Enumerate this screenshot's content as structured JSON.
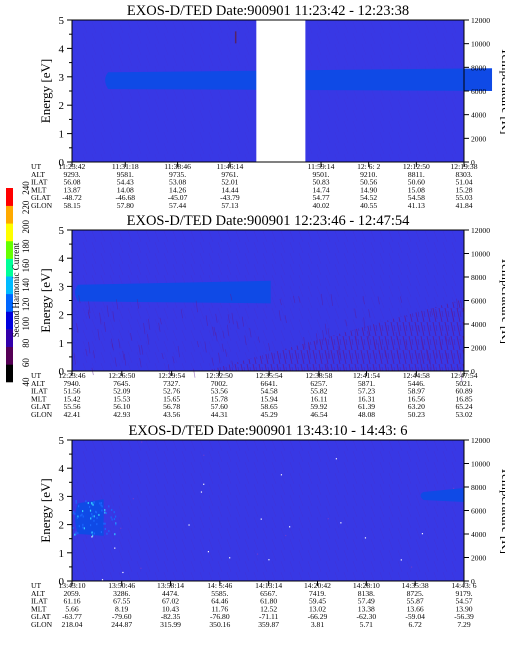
{
  "colorbar": {
    "label": "Second Harmonic Current",
    "ticks": [
      "40",
      "60",
      "80",
      "100",
      "120",
      "140",
      "160",
      "180",
      "200",
      "220",
      "240"
    ],
    "colors": [
      "#000000",
      "#550055",
      "#3300aa",
      "#0000dd",
      "#0066ff",
      "#00bbff",
      "#00ff99",
      "#66ff00",
      "#ffff00",
      "#ffaa00",
      "#ff0000"
    ]
  },
  "colors": {
    "background_low": "#3838e6",
    "band_high": "#0f4ae6",
    "noise_dark": "#5a1c9a",
    "gap": "#ffffff"
  },
  "panels": [
    {
      "title": "EXOS-D/TED   Date:900901   11:23:42 - 12:23:38",
      "ylabel": "Energy [eV]",
      "y2label": "Temperature [K]",
      "yticks": [
        "0",
        "1",
        "2",
        "3",
        "4",
        "5"
      ],
      "y2ticks": [
        "0",
        "2000",
        "4000",
        "6000",
        "8000",
        "10000",
        "12000"
      ],
      "row_labels": [
        "UT",
        "ALT",
        "ILAT",
        "MLT",
        "GLAT",
        "GLON"
      ],
      "columns": [
        [
          "11:23:42",
          "9293.",
          "56.08",
          "13.87",
          "-48.72",
          "58.15"
        ],
        [
          "11:31:18",
          "9581.",
          "54.43",
          "14.08",
          "-46.68",
          "57.80"
        ],
        [
          "11:38:46",
          "9735.",
          "53.08",
          "14.26",
          "-45.07",
          "57.44"
        ],
        [
          "11:46:14",
          "9761.",
          "52.01",
          "14.44",
          "-43.79",
          "57.13"
        ],
        [
          "11:59:14",
          "9501.",
          "50.83",
          "14.74",
          "54.77",
          "40.02"
        ],
        [
          "12: 6: 2",
          "9210.",
          "50.56",
          "14.90",
          "54.52",
          "40.55"
        ],
        [
          "12:12:50",
          "8811.",
          "50.60",
          "15.08",
          "54.58",
          "41.13"
        ],
        [
          "12:19:38",
          "8303.",
          "51.04",
          "15.28",
          "55.03",
          "41.84"
        ]
      ]
    },
    {
      "title": "EXOS-D/TED   Date:900901   12:23:46 - 12:47:54",
      "ylabel": "Energy [eV]",
      "y2label": "Temperature [K]",
      "yticks": [
        "0",
        "1",
        "2",
        "3",
        "4",
        "5"
      ],
      "y2ticks": [
        "0",
        "2000",
        "4000",
        "6000",
        "8000",
        "10000",
        "12000"
      ],
      "row_labels": [
        "UT",
        "ALT",
        "ILAT",
        "MLT",
        "GLAT",
        "GLON"
      ],
      "columns": [
        [
          "12:23:46",
          "7940.",
          "51.56",
          "15.42",
          "55.56",
          "42.41"
        ],
        [
          "12:26:50",
          "7645.",
          "52.09",
          "15.53",
          "56.10",
          "42.93"
        ],
        [
          "12:29:54",
          "7327.",
          "52.76",
          "15.65",
          "56.78",
          "43.56"
        ],
        [
          "12:32:50",
          "7002.",
          "53.56",
          "15.78",
          "57.60",
          "44.31"
        ],
        [
          "12:35:54",
          "6641.",
          "54.58",
          "15.94",
          "58.65",
          "45.29"
        ],
        [
          "12:38:58",
          "6257.",
          "55.82",
          "16.11",
          "59.92",
          "46.54"
        ],
        [
          "12:41:54",
          "5871.",
          "57.23",
          "16.31",
          "61.39",
          "48.08"
        ],
        [
          "12:44:58",
          "5446.",
          "58.97",
          "16.56",
          "63.20",
          "50.23"
        ],
        [
          "12:47:54",
          "5021.",
          "60.89",
          "16.85",
          "65.24",
          "53.02"
        ]
      ]
    },
    {
      "title": "EXOS-D/TED   Date:900901   13:43:10 - 14:43: 6",
      "ylabel": "Energy [eV]",
      "y2label": "Temperature [K]",
      "yticks": [
        "0",
        "1",
        "2",
        "3",
        "4",
        "5"
      ],
      "y2ticks": [
        "0",
        "2000",
        "4000",
        "6000",
        "8000",
        "10000",
        "12000"
      ],
      "row_labels": [
        "UT",
        "ALT",
        "ILAT",
        "MLT",
        "GLAT",
        "GLON"
      ],
      "columns": [
        [
          "13:43:10",
          "2059.",
          "61.16",
          "5.66",
          "-63.77",
          "218.04"
        ],
        [
          "13:50:46",
          "3286.",
          "67.55",
          "8.19",
          "-79.60",
          "244.87"
        ],
        [
          "13:58:14",
          "4474.",
          "67.02",
          "10.43",
          "-82.35",
          "315.99"
        ],
        [
          "14: 5:46",
          "5585.",
          "64.46",
          "11.76",
          "-76.80",
          "350.16"
        ],
        [
          "14:13:14",
          "6567.",
          "61.80",
          "12.52",
          "-71.11",
          "359.87"
        ],
        [
          "14:20:42",
          "7419.",
          "59.45",
          "13.02",
          "-66.29",
          "3.81"
        ],
        [
          "14:28:10",
          "8138.",
          "57.49",
          "13.38",
          "-62.30",
          "5.71"
        ],
        [
          "14:35:38",
          "8725.",
          "55.87",
          "13.66",
          "-59.04",
          "6.72"
        ],
        [
          "14:43: 6",
          "9179.",
          "54.57",
          "13.90",
          "-56.39",
          "7.29"
        ]
      ]
    }
  ],
  "chart_data": [
    {
      "type": "heatmap",
      "title": "EXOS-D/TED   Date:900901   11:23:42 - 12:23:38",
      "ylabel": "Energy [eV]",
      "y2label": "Temperature [K]",
      "ylim": [
        0,
        5
      ],
      "y2lim": [
        0,
        12000
      ],
      "features": [
        {
          "kind": "band",
          "x_start": "11:28",
          "x_end": "12:23:38",
          "y_range": [
            2.5,
            3.3
          ],
          "y2_mid": 7000
        },
        {
          "kind": "data_gap",
          "x_start": "11:50",
          "x_end": "11:57"
        }
      ]
    },
    {
      "type": "heatmap",
      "title": "EXOS-D/TED   Date:900901   12:23:46 - 12:47:54",
      "ylabel": "Energy [eV]",
      "y2label": "Temperature [K]",
      "ylim": [
        0,
        5
      ],
      "y2lim": [
        0,
        12000
      ],
      "features": [
        {
          "kind": "band",
          "x_start": "12:23:46",
          "x_end": "12:36",
          "y_range": [
            2.4,
            3.2
          ],
          "y2_mid": 6800
        },
        {
          "kind": "noise",
          "x_start": "12:32",
          "x_end": "12:47:54",
          "y_range": [
            0,
            2.2
          ]
        }
      ]
    },
    {
      "type": "heatmap",
      "title": "EXOS-D/TED   Date:900901   13:43:10 - 14:43: 6",
      "ylabel": "Energy [eV]",
      "y2label": "Temperature [K]",
      "ylim": [
        0,
        5
      ],
      "y2lim": [
        0,
        12000
      ],
      "features": [
        {
          "kind": "band",
          "x_start": "13:43:10",
          "x_end": "13:48",
          "y_range": [
            1.6,
            2.9
          ],
          "y2_mid": 5400
        },
        {
          "kind": "band",
          "x_start": "14:36",
          "x_end": "14:43: 6",
          "y_range": [
            2.8,
            3.3
          ],
          "y2_mid": 7300
        }
      ]
    }
  ]
}
